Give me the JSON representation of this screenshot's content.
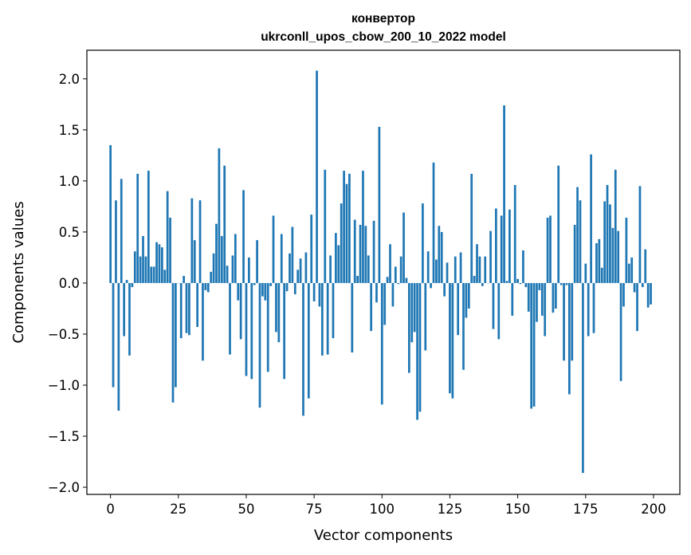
{
  "chart_data": {
    "type": "bar",
    "title_lines": [
      "конвертор",
      "ukrconll_upos_cbow_200_10_2022 model"
    ],
    "xlabel": "Vector components",
    "ylabel": "Components values",
    "xlim": [
      -8.7,
      209.7
    ],
    "ylim": [
      -2.07,
      2.28
    ],
    "xticks": [
      0,
      25,
      50,
      75,
      100,
      125,
      150,
      175,
      200
    ],
    "yticks": [
      -2.0,
      -1.5,
      -1.0,
      -0.5,
      0.0,
      0.5,
      1.0,
      1.5,
      2.0
    ],
    "ytick_labels": [
      "−2.0",
      "−1.5",
      "−1.0",
      "−0.5",
      "0.0",
      "0.5",
      "1.0",
      "1.5",
      "2.0"
    ],
    "bar_color": "#1f77b4",
    "grid": false,
    "legend": "none",
    "values": [
      1.35,
      -1.02,
      0.81,
      -1.25,
      1.02,
      -0.52,
      0.03,
      -0.71,
      -0.04,
      0.31,
      1.07,
      0.26,
      0.46,
      0.26,
      1.1,
      0.16,
      0.16,
      0.4,
      0.38,
      0.35,
      0.13,
      0.9,
      0.64,
      -1.17,
      -1.02,
      0.0,
      -0.54,
      0.07,
      -0.49,
      -0.51,
      0.83,
      0.42,
      -0.43,
      0.81,
      -0.76,
      -0.07,
      -0.09,
      0.11,
      0.29,
      0.58,
      1.32,
      0.46,
      1.15,
      0.17,
      -0.7,
      0.27,
      0.48,
      -0.17,
      -0.55,
      0.91,
      -0.91,
      0.25,
      -0.94,
      -0.02,
      0.42,
      -1.22,
      -0.13,
      -0.17,
      -0.87,
      -0.03,
      0.66,
      -0.48,
      -0.58,
      0.48,
      -0.94,
      -0.08,
      0.29,
      0.55,
      -0.11,
      0.13,
      0.24,
      -1.3,
      0.3,
      -1.13,
      0.67,
      -0.18,
      2.08,
      -0.23,
      -0.71,
      1.11,
      -0.7,
      0.27,
      -0.54,
      0.49,
      0.37,
      0.78,
      1.1,
      0.97,
      1.07,
      -0.68,
      0.62,
      0.07,
      0.57,
      1.1,
      0.56,
      0.27,
      -0.47,
      0.61,
      -0.19,
      1.53,
      -1.19,
      -0.41,
      0.06,
      0.38,
      -0.23,
      0.16,
      -0.01,
      0.26,
      0.69,
      0.05,
      -0.88,
      -0.58,
      -0.48,
      -1.34,
      -1.26,
      0.78,
      -0.66,
      0.31,
      -0.05,
      1.18,
      0.23,
      0.56,
      0.5,
      -0.13,
      0.2,
      -1.08,
      -1.13,
      0.26,
      -0.51,
      0.3,
      -0.85,
      -0.34,
      -0.25,
      1.07,
      0.07,
      0.38,
      0.26,
      -0.03,
      0.26,
      0.0,
      0.51,
      -0.45,
      0.73,
      -0.55,
      0.66,
      1.74,
      0.02,
      0.72,
      -0.32,
      0.96,
      0.04,
      -0.01,
      0.32,
      -0.04,
      -0.28,
      -1.23,
      -1.21,
      -0.38,
      -0.07,
      -0.32,
      -0.52,
      0.64,
      0.66,
      -0.29,
      -0.25,
      1.15,
      -0.02,
      -0.76,
      -0.02,
      -1.09,
      -0.76,
      0.57,
      0.94,
      0.81,
      -1.86,
      0.19,
      -0.52,
      1.26,
      -0.49,
      0.39,
      0.43,
      0.15,
      0.8,
      0.96,
      0.77,
      0.54,
      1.11,
      0.51,
      -0.96,
      -0.23,
      0.64,
      0.19,
      0.25,
      -0.09,
      -0.47,
      0.95,
      -0.04,
      0.33,
      -0.24,
      -0.21
    ]
  }
}
